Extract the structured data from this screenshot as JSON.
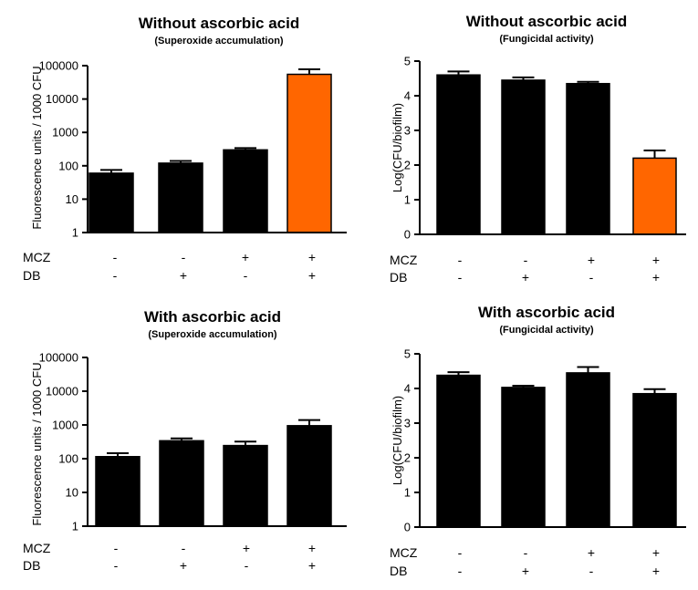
{
  "colors": {
    "bar_default": "#000000",
    "bar_highlight": "#ff6600"
  },
  "chart_data": [
    {
      "id": "top-left",
      "type": "bar",
      "title": "Without ascorbic acid",
      "subtitle": "(Superoxide accumulation)",
      "ylabel": "Fluorescence units / 1000 CFU",
      "yscale": "log",
      "ylim": [
        1,
        100000
      ],
      "yticks": [
        "1",
        "10",
        "100",
        "1000",
        "10000",
        "100000"
      ],
      "values": [
        60,
        120,
        300,
        55000
      ],
      "errors": [
        75,
        140,
        340,
        78000
      ],
      "highlight": [
        false,
        false,
        false,
        true
      ],
      "rows": [
        {
          "label": "MCZ",
          "signs": [
            "-",
            "-",
            "+",
            "+"
          ]
        },
        {
          "label": "DB",
          "signs": [
            "-",
            "+",
            "-",
            "+"
          ]
        }
      ]
    },
    {
      "id": "top-right",
      "type": "bar",
      "title": "Without ascorbic acid",
      "subtitle": "(Fungicidal activity)",
      "ylabel": "Log(CFU/biofilm)",
      "yscale": "linear",
      "ylim": [
        0,
        5
      ],
      "yticks": [
        "0",
        "1",
        "2",
        "3",
        "4",
        "5"
      ],
      "values": [
        4.6,
        4.45,
        4.35,
        2.2
      ],
      "errors": [
        4.7,
        4.53,
        4.4,
        2.42
      ],
      "highlight": [
        false,
        false,
        false,
        true
      ],
      "rows": [
        {
          "label": "MCZ",
          "signs": [
            "-",
            "-",
            "+",
            "+"
          ]
        },
        {
          "label": "DB",
          "signs": [
            "-",
            "+",
            "-",
            "+"
          ]
        }
      ]
    },
    {
      "id": "bottom-left",
      "type": "bar",
      "title": "With ascorbic acid",
      "subtitle": "(Superoxide accumulation)",
      "ylabel": "Fluorescence units / 1000 CFU",
      "yscale": "log",
      "ylim": [
        1,
        100000
      ],
      "yticks": [
        "1",
        "10",
        "100",
        "1000",
        "10000",
        "100000"
      ],
      "values": [
        115,
        340,
        245,
        950
      ],
      "errors": [
        145,
        400,
        320,
        1400
      ],
      "highlight": [
        false,
        false,
        false,
        false
      ],
      "rows": [
        {
          "label": "MCZ",
          "signs": [
            "-",
            "-",
            "+",
            "+"
          ]
        },
        {
          "label": "DB",
          "signs": [
            "-",
            "+",
            "-",
            "+"
          ]
        }
      ]
    },
    {
      "id": "bottom-right",
      "type": "bar",
      "title": "With ascorbic acid",
      "subtitle": "(Fungicidal activity)",
      "ylabel": "Log(CFU/biofilm)",
      "yscale": "linear",
      "ylim": [
        0,
        5
      ],
      "yticks": [
        "0",
        "1",
        "2",
        "3",
        "4",
        "5"
      ],
      "values": [
        4.38,
        4.03,
        4.45,
        3.85
      ],
      "errors": [
        4.47,
        4.08,
        4.62,
        3.98
      ],
      "highlight": [
        false,
        false,
        false,
        false
      ],
      "rows": [
        {
          "label": "MCZ",
          "signs": [
            "-",
            "-",
            "+",
            "+"
          ]
        },
        {
          "label": "DB",
          "signs": [
            "-",
            "+",
            "-",
            "+"
          ]
        }
      ]
    }
  ]
}
